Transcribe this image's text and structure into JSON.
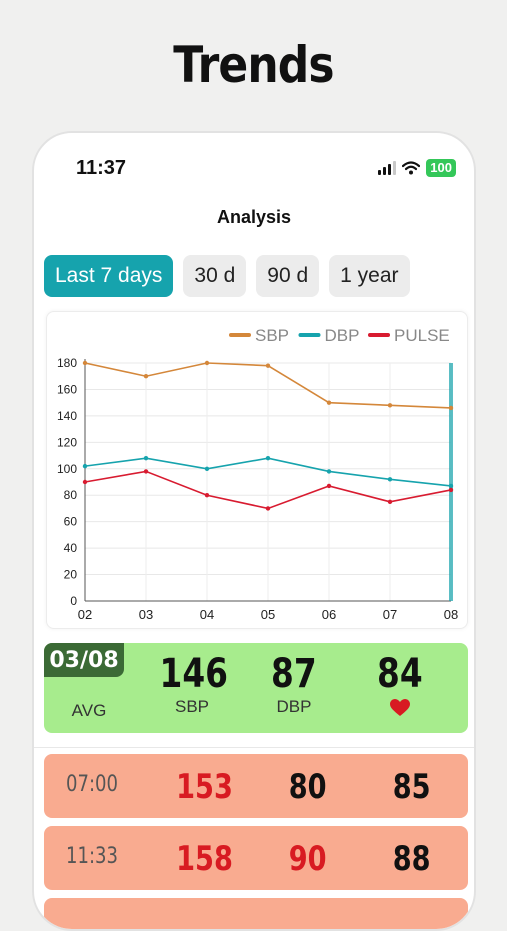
{
  "headline": "Trends",
  "status_bar": {
    "time": "11:37",
    "battery": "100"
  },
  "nav": {
    "title": "Analysis"
  },
  "tabs": [
    {
      "label": "Last 7 days",
      "active": true
    },
    {
      "label": "30 d",
      "active": false
    },
    {
      "label": "90 d",
      "active": false
    },
    {
      "label": "1 year",
      "active": false
    }
  ],
  "colors": {
    "accent": "#16a3ad",
    "sbp": "#d4873a",
    "dbp": "#16a3ad",
    "pulse": "#d81b30",
    "summary_bg": "#a7ec8d",
    "row_bg": "#f9ab90"
  },
  "chart_data": {
    "type": "line",
    "categories": [
      "02",
      "03",
      "04",
      "05",
      "06",
      "07",
      "08"
    ],
    "yticks": [
      0,
      20,
      40,
      60,
      80,
      100,
      120,
      140,
      160,
      180
    ],
    "ylim": [
      0,
      180
    ],
    "legend_position": "top-right",
    "grid": true,
    "series": [
      {
        "name": "SBP",
        "color": "#d4873a",
        "values": [
          180,
          170,
          180,
          178,
          150,
          148,
          146
        ]
      },
      {
        "name": "DBP",
        "color": "#16a3ad",
        "values": [
          102,
          108,
          100,
          108,
          98,
          92,
          87
        ]
      },
      {
        "name": "PULSE",
        "color": "#d81b30",
        "values": [
          90,
          98,
          80,
          70,
          87,
          75,
          84
        ]
      }
    ],
    "selected_category": "08"
  },
  "summary": {
    "date": "03/08",
    "avg_label": "AVG",
    "sbp": "146",
    "sbp_label": "SBP",
    "dbp": "87",
    "dbp_label": "DBP",
    "pulse": "84",
    "pulse_icon": "heart-icon"
  },
  "readings": [
    {
      "time": "07:00",
      "sbp": "153",
      "dbp": "80",
      "pulse": "85",
      "sbp_high": true,
      "dbp_high": false
    },
    {
      "time": "11:33",
      "sbp": "158",
      "dbp": "90",
      "pulse": "88",
      "sbp_high": true,
      "dbp_high": true
    }
  ]
}
